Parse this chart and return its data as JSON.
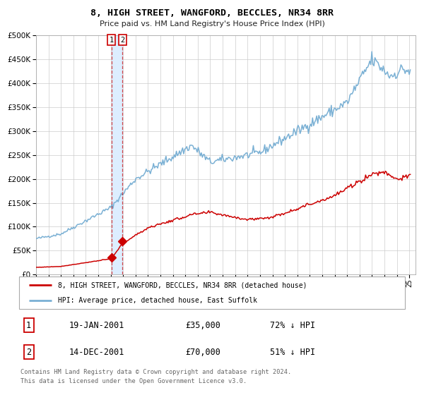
{
  "title": "8, HIGH STREET, WANGFORD, BECCLES, NR34 8RR",
  "subtitle": "Price paid vs. HM Land Registry's House Price Index (HPI)",
  "legend_label_red": "8, HIGH STREET, WANGFORD, BECCLES, NR34 8RR (detached house)",
  "legend_label_blue": "HPI: Average price, detached house, East Suffolk",
  "transaction1_label": "19-JAN-2001",
  "transaction1_price": "£35,000",
  "transaction1_hpi": "72% ↓ HPI",
  "transaction2_label": "14-DEC-2001",
  "transaction2_price": "£70,000",
  "transaction2_hpi": "51% ↓ HPI",
  "footnote1": "Contains HM Land Registry data © Crown copyright and database right 2024.",
  "footnote2": "This data is licensed under the Open Government Licence v3.0.",
  "xmin": 1995.0,
  "xmax": 2025.5,
  "ymin": 0,
  "ymax": 500000,
  "red_color": "#cc0000",
  "blue_color": "#7ab0d4",
  "transaction1_date_num": 2001.05,
  "transaction2_date_num": 2001.95,
  "transaction1_price_val": 35000,
  "transaction2_price_val": 70000,
  "bg_color": "#ffffff",
  "grid_color": "#cccccc",
  "shading_color": "#ddeeff",
  "marker_color": "#cc0000"
}
